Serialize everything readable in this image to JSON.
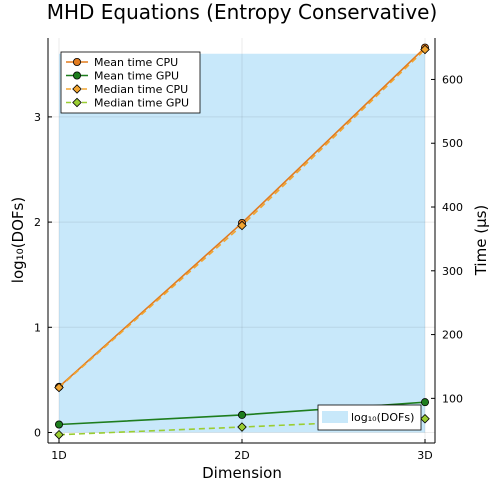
{
  "chart_data": {
    "type": "line",
    "title": "MHD Equations (Entropy Conservative)",
    "xlabel": "Dimension",
    "ylabel_left": "log₁₀(DOFs)",
    "ylabel_right": "Time (µs)",
    "categories": [
      "1D",
      "2D",
      "3D"
    ],
    "x_tick_labels": [
      "1D",
      "2D",
      "3D"
    ],
    "left_axis": {
      "ylim": [
        -0.1,
        3.75
      ],
      "ticks": [
        0,
        1,
        2,
        3
      ]
    },
    "right_axis": {
      "ylim": [
        30,
        665
      ],
      "ticks": [
        100,
        200,
        300,
        400,
        500,
        600
      ]
    },
    "grid": true,
    "legend_placement": "top-left",
    "area": {
      "name": "log₁₀(DOFs)",
      "axis": "left",
      "values": [
        3.6,
        3.6,
        3.6
      ],
      "color": "#c8e8fa",
      "legend_placement": "bottom-right"
    },
    "series": [
      {
        "name": "Mean time CPU",
        "axis": "right",
        "values": [
          118,
          375,
          650
        ],
        "color": "#e27b1e",
        "marker": "circle",
        "dash": "solid"
      },
      {
        "name": "Mean time GPU",
        "axis": "right",
        "values": [
          59,
          74,
          94
        ],
        "color": "#1e7d1e",
        "marker": "circle",
        "dash": "solid"
      },
      {
        "name": "Median time CPU",
        "axis": "right",
        "values": [
          117,
          371,
          647
        ],
        "color": "#f2a530",
        "marker": "diamond",
        "dash": "dashed"
      },
      {
        "name": "Median time GPU",
        "axis": "right",
        "values": [
          43,
          55,
          68
        ],
        "color": "#9acd32",
        "marker": "diamond",
        "dash": "dashed"
      }
    ]
  }
}
